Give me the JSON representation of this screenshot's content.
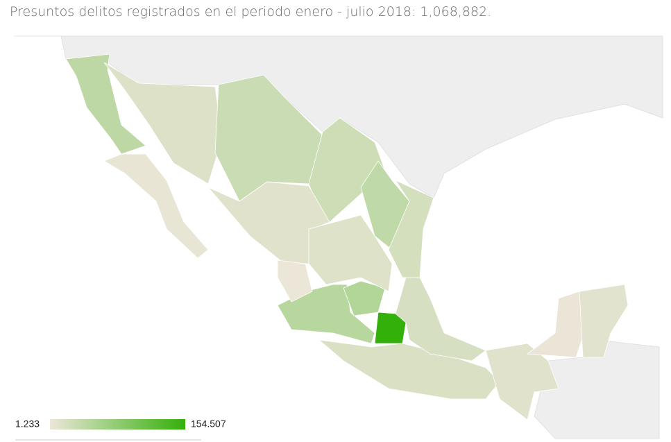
{
  "title": "Presuntos delitos registrados en el periodo enero - julio 2018: 1,068,882.",
  "map": {
    "regions": [
      40000,
      5000,
      15000,
      30000,
      28000,
      38000,
      22000,
      12000,
      45000,
      50000,
      154507,
      18000,
      20000,
      12000,
      3000,
      10000,
      2000,
      14000
    ],
    "legend": {
      "min": {
        "value": 1233,
        "label": "1.233"
      },
      "max": {
        "value": 154507,
        "label": "154.507"
      },
      "colors": [
        "#ede6da",
        "#33b00a"
      ]
    }
  }
}
